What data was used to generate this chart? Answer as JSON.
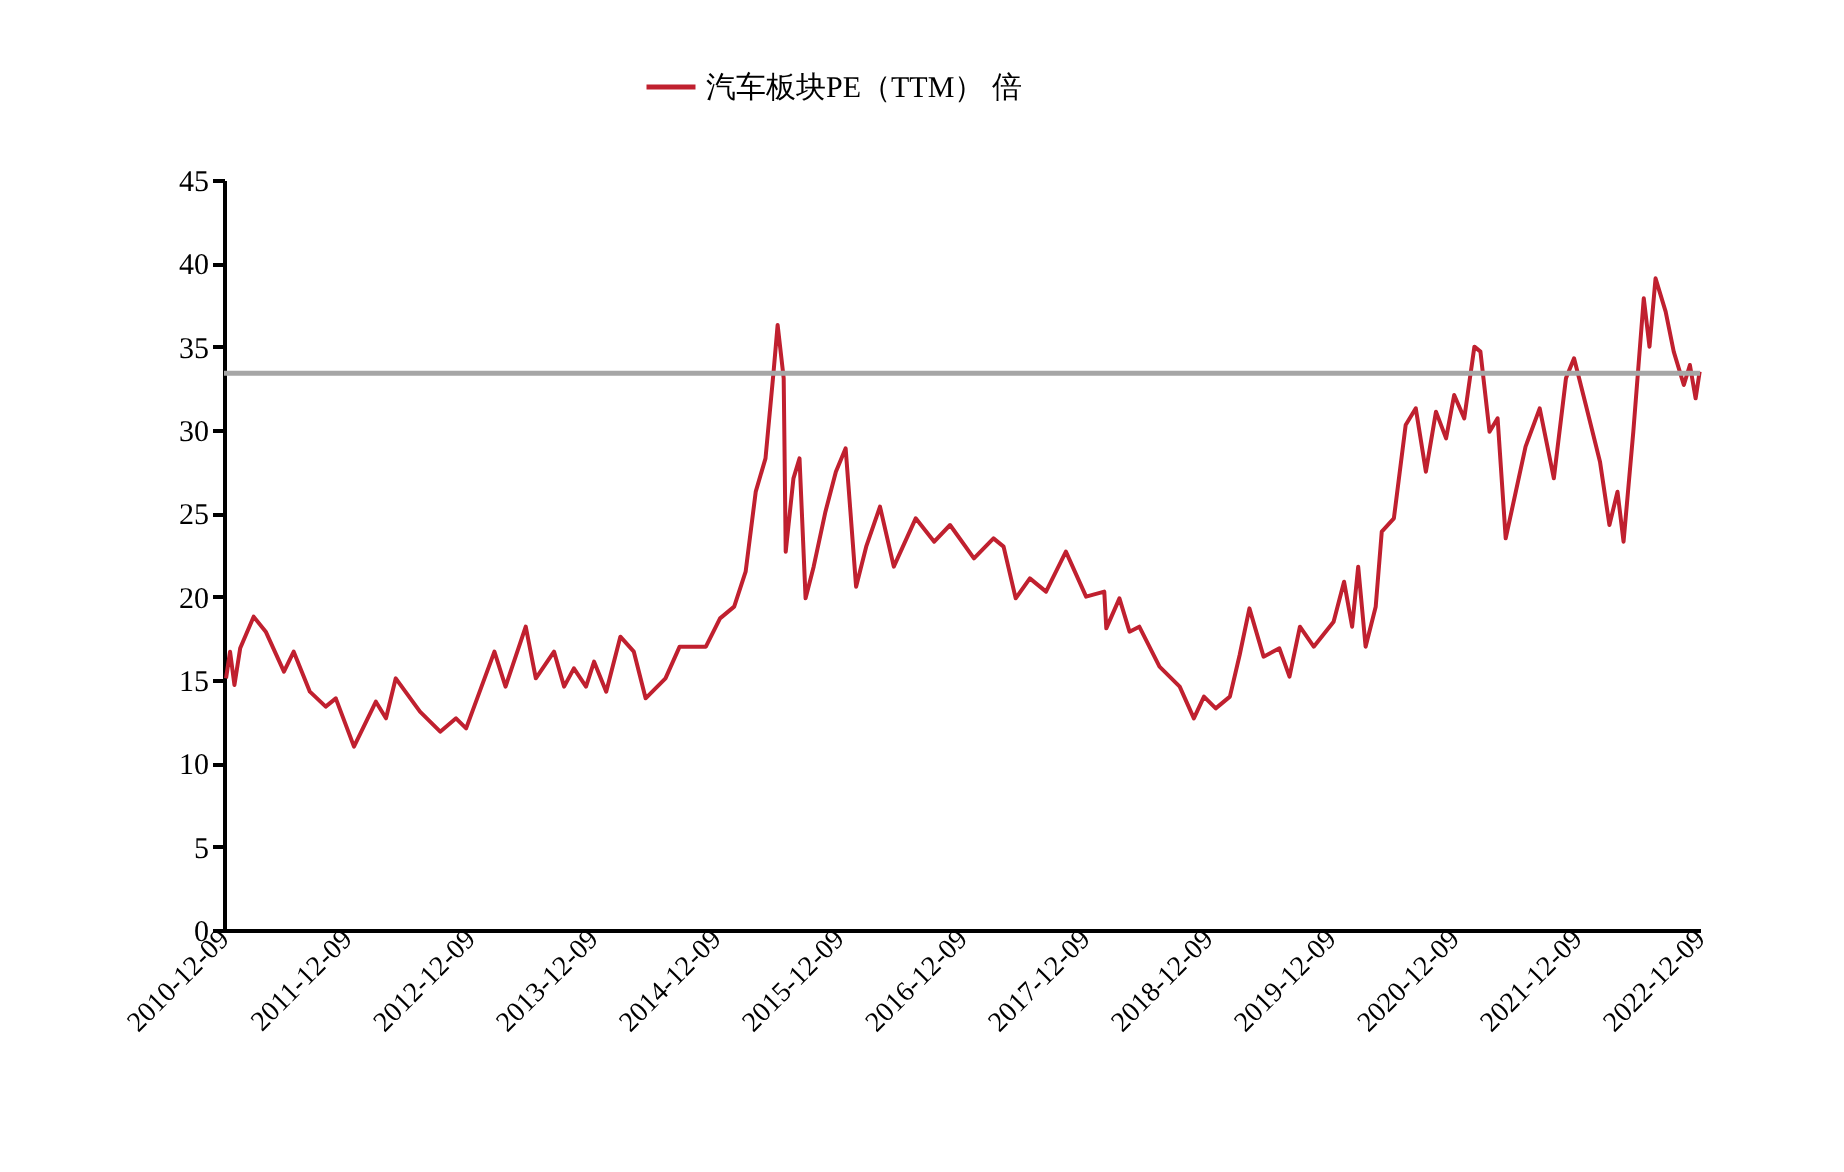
{
  "chart_data": {
    "type": "line",
    "x": [
      "2010-12-15",
      "2010-12-27",
      "2011-01-09",
      "2011-01-26",
      "2011-03-07",
      "2011-04-12",
      "2011-06-05",
      "2011-07-04",
      "2011-08-21",
      "2011-10-07",
      "2011-11-06",
      "2011-12-30",
      "2012-03-04",
      "2012-04-03",
      "2012-05-02",
      "2012-07-13",
      "2012-09-11",
      "2012-10-28",
      "2012-11-27",
      "2013-02-19",
      "2013-03-24",
      "2013-05-23",
      "2013-06-22",
      "2013-08-15",
      "2013-09-14",
      "2013-10-13",
      "2013-11-18",
      "2013-12-12",
      "2014-01-17",
      "2014-02-28",
      "2014-04-09",
      "2014-05-14",
      "2014-07-12",
      "2014-08-23",
      "2014-11-09",
      "2014-12-21",
      "2015-02-01",
      "2015-03-07",
      "2015-04-06",
      "2015-05-05",
      "2015-05-29",
      "2015-06-10",
      "2015-06-28",
      "2015-07-04",
      "2015-07-27",
      "2015-08-14",
      "2015-09-01",
      "2015-09-25",
      "2015-10-30",
      "2015-11-30",
      "2015-12-29",
      "2016-01-29",
      "2016-02-28",
      "2016-04-09",
      "2016-05-20",
      "2016-07-24",
      "2016-09-17",
      "2016-11-03",
      "2017-01-13",
      "2017-03-12",
      "2017-04-11",
      "2017-05-17",
      "2017-06-28",
      "2017-08-15",
      "2017-10-13",
      "2017-12-12",
      "2018-02-04",
      "2018-02-10",
      "2018-03-21",
      "2018-04-20",
      "2018-05-19",
      "2018-07-18",
      "2018-09-16",
      "2018-10-28",
      "2018-11-27",
      "2019-01-01",
      "2019-02-12",
      "2019-03-13",
      "2019-04-11",
      "2019-05-23",
      "2019-07-09",
      "2019-08-08",
      "2019-09-08",
      "2019-10-19",
      "2019-12-17",
      "2020-01-17",
      "2020-02-10",
      "2020-02-28",
      "2020-03-21",
      "2020-04-20",
      "2020-05-08",
      "2020-06-13",
      "2020-07-18",
      "2020-08-17",
      "2020-09-16",
      "2020-10-16",
      "2020-11-15",
      "2020-12-09",
      "2021-01-08",
      "2021-02-07",
      "2021-02-25",
      "2021-03-24",
      "2021-04-17",
      "2021-05-11",
      "2021-07-09",
      "2021-08-20",
      "2021-10-01",
      "2021-11-06",
      "2021-11-30",
      "2022-01-04",
      "2022-02-15",
      "2022-03-15",
      "2022-04-08",
      "2022-04-26",
      "2022-05-25",
      "2022-06-25",
      "2022-07-12",
      "2022-07-30",
      "2022-08-29",
      "2022-09-22",
      "2022-10-22",
      "2022-11-09",
      "2022-11-26",
      "2022-12-08"
    ],
    "series": [
      {
        "name": "汽车板块PE（TTM） 倍",
        "color": "#c0202f",
        "values": [
          15.1,
          16.7,
          14.7,
          16.9,
          18.8,
          17.9,
          15.5,
          16.7,
          14.3,
          13.4,
          13.9,
          11.0,
          13.7,
          12.7,
          15.1,
          13.1,
          11.9,
          12.7,
          12.1,
          16.7,
          14.6,
          18.2,
          15.1,
          16.7,
          14.6,
          15.7,
          14.6,
          16.1,
          14.3,
          17.6,
          16.7,
          13.9,
          15.1,
          17.0,
          17.0,
          18.7,
          19.4,
          21.5,
          26.3,
          28.3,
          33.5,
          36.3,
          33.1,
          22.7,
          27.1,
          28.3,
          19.9,
          21.8,
          25.1,
          27.5,
          28.9,
          20.6,
          23.0,
          25.4,
          21.8,
          24.7,
          23.3,
          24.3,
          22.3,
          23.5,
          23.0,
          19.9,
          21.1,
          20.3,
          22.7,
          20.0,
          20.3,
          18.1,
          19.9,
          17.9,
          18.2,
          15.8,
          14.6,
          12.7,
          14.0,
          13.3,
          14.0,
          16.5,
          19.3,
          16.4,
          16.9,
          15.2,
          18.2,
          17.0,
          18.5,
          20.9,
          18.2,
          21.8,
          17.0,
          19.4,
          23.9,
          24.7,
          30.3,
          31.3,
          27.5,
          31.1,
          29.5,
          32.1,
          30.7,
          35.0,
          34.7,
          29.9,
          30.7,
          23.5,
          29.0,
          31.3,
          27.1,
          33.1,
          34.3,
          31.5,
          28.1,
          24.3,
          26.3,
          23.3,
          29.9,
          37.9,
          35.0,
          39.1,
          37.1,
          34.7,
          32.7,
          33.9,
          31.9,
          33.5
        ]
      }
    ],
    "xlim": [
      "2010-12-09",
      "2022-12-09"
    ],
    "xticks": [
      "2010-12-09",
      "2011-12-09",
      "2012-12-09",
      "2013-12-09",
      "2014-12-09",
      "2015-12-09",
      "2016-12-09",
      "2017-12-09",
      "2018-12-09",
      "2019-12-09",
      "2020-12-09",
      "2021-12-09",
      "2022-12-09"
    ],
    "ylim": [
      0,
      45
    ],
    "yticks": [
      0,
      5,
      10,
      15,
      20,
      25,
      30,
      35,
      40,
      45
    ],
    "ref_lines": [
      {
        "axis": "y",
        "value": 33.4,
        "color": "#a6a6a6"
      }
    ],
    "grid": false,
    "legend": "top",
    "line_style": "solid",
    "marker": "none"
  }
}
